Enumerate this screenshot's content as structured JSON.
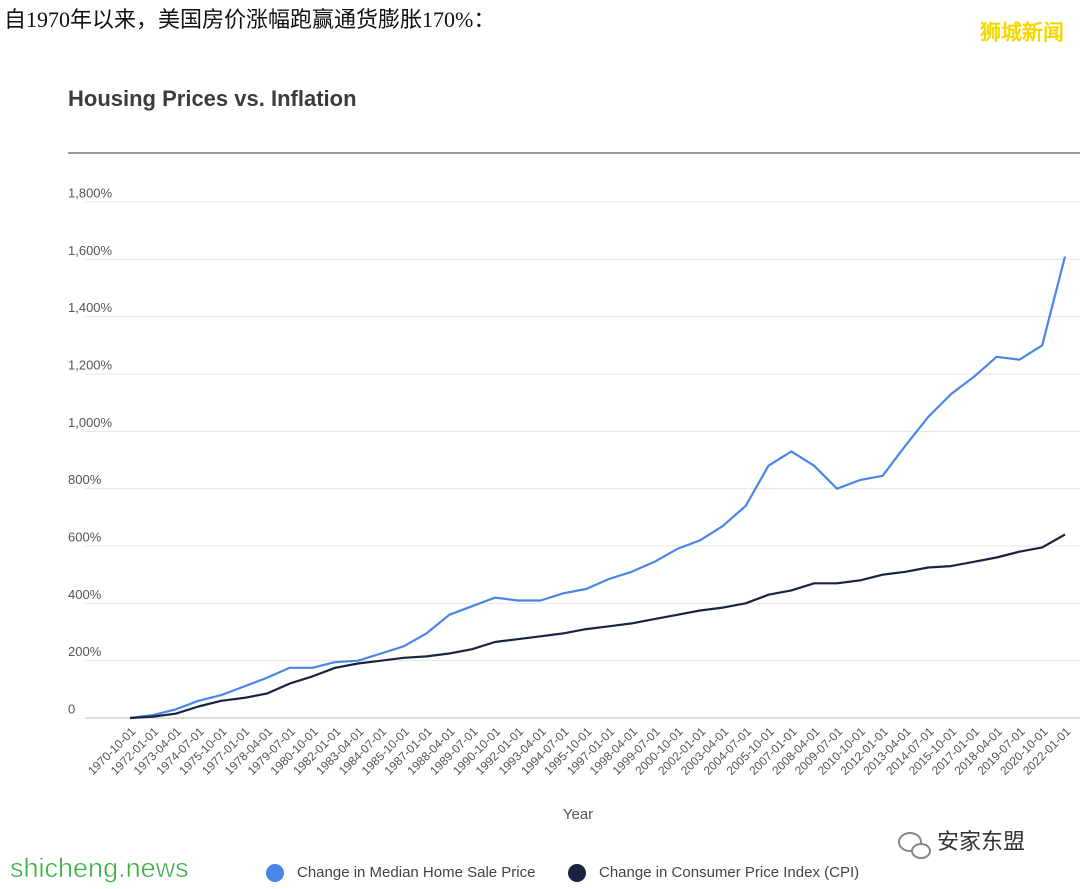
{
  "caption": "自1970年以来，美国房价涨幅跑赢通货膨胀170%：",
  "watermarks": {
    "top_right": "狮城新闻",
    "bottom_left": "shicheng.news",
    "bottom_right": "安家东盟"
  },
  "chart_data": {
    "type": "line",
    "title": "Housing Prices vs. Inflation",
    "x_label": "Year",
    "categories": [
      "1970-10-01",
      "1972-01-01",
      "1973-04-01",
      "1974-07-01",
      "1975-10-01",
      "1977-01-01",
      "1978-04-01",
      "1979-07-01",
      "1980-10-01",
      "1982-01-01",
      "1983-04-01",
      "1984-07-01",
      "1985-10-01",
      "1987-01-01",
      "1988-04-01",
      "1989-07-01",
      "1990-10-01",
      "1992-01-01",
      "1993-04-01",
      "1994-07-01",
      "1995-10-01",
      "1997-01-01",
      "1998-04-01",
      "1999-07-01",
      "2000-10-01",
      "2002-01-01",
      "2003-04-01",
      "2004-07-01",
      "2005-10-01",
      "2007-01-01",
      "2008-04-01",
      "2009-07-01",
      "2010-10-01",
      "2012-01-01",
      "2013-04-01",
      "2014-07-01",
      "2015-10-01",
      "2017-01-01",
      "2018-04-01",
      "2019-07-01",
      "2020-10-01",
      "2022-01-01"
    ],
    "series": [
      {
        "name": "Change in Median Home Sale Price",
        "color": "#4a86e8",
        "values": [
          0,
          10,
          30,
          60,
          80,
          110,
          140,
          175,
          175,
          195,
          200,
          225,
          250,
          295,
          360,
          390,
          420,
          410,
          410,
          435,
          450,
          485,
          510,
          545,
          590,
          620,
          670,
          740,
          880,
          930,
          880,
          800,
          830,
          845,
          950,
          1050,
          1130,
          1190,
          1260,
          1250,
          1300,
          1610
        ]
      },
      {
        "name": "Change in Consumer Price Index (CPI)",
        "color": "#1c2340",
        "values": [
          0,
          5,
          15,
          40,
          60,
          70,
          85,
          120,
          145,
          175,
          190,
          200,
          210,
          215,
          225,
          240,
          265,
          275,
          285,
          295,
          310,
          320,
          330,
          345,
          360,
          375,
          385,
          400,
          430,
          445,
          470,
          470,
          480,
          500,
          510,
          525,
          530,
          545,
          560,
          580,
          595,
          640
        ]
      }
    ],
    "ylim": [
      0,
      1800
    ],
    "yticks": [
      0,
      {
        "value": 200,
        "label": "200%"
      },
      {
        "value": 400,
        "label": "400%"
      },
      {
        "value": 600,
        "label": "600%"
      },
      {
        "value": 800,
        "label": "800%"
      },
      {
        "value": 1000,
        "label": "1,000%"
      },
      {
        "value": 1200,
        "label": "1,200%"
      },
      {
        "value": 1400,
        "label": "1,400%"
      },
      {
        "value": 1600,
        "label": "1,600%"
      },
      {
        "value": 1800,
        "label": "1,800%"
      }
    ],
    "grid": true,
    "legend": "bottom"
  }
}
